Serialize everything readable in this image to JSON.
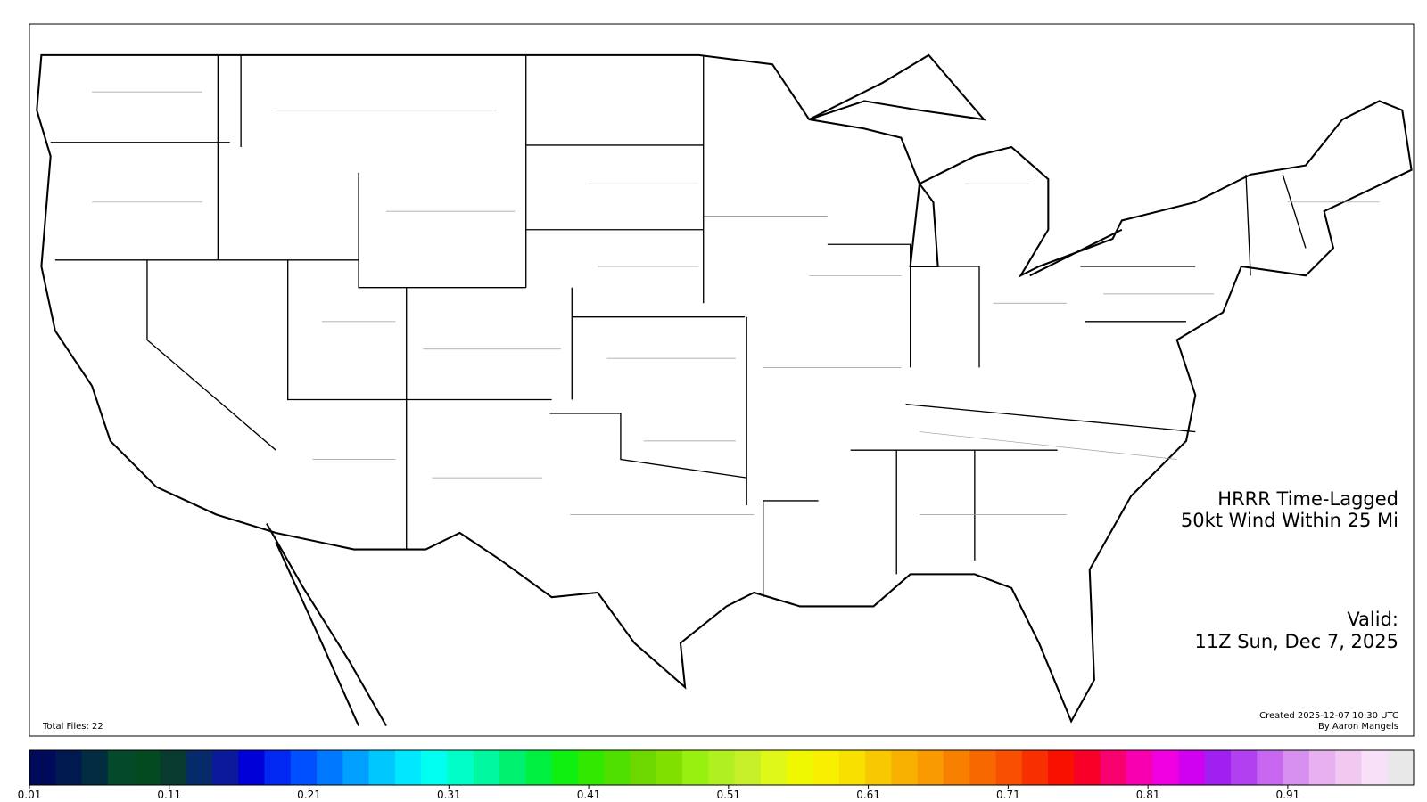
{
  "map": {
    "title_lines": [
      "HRRR Time-Lagged",
      "50kt Wind Within 25 Mi"
    ],
    "valid_lines": [
      "Valid:",
      "11Z Sun, Dec 7, 2025"
    ],
    "footer_left": "Total Files: 22",
    "credit_lines": [
      "Created 2025-12-07 10:30 UTC",
      "By Aaron Mangels"
    ]
  },
  "colorbar": {
    "range": [
      0.01,
      1.0
    ],
    "ticks": [
      0.01,
      0.11,
      0.21,
      0.31,
      0.41,
      0.51,
      0.61,
      0.71,
      0.81,
      0.91
    ],
    "colors": [
      "#000a5a",
      "#001a50",
      "#022d40",
      "#034a2a",
      "#024a20",
      "#083a30",
      "#062a6a",
      "#0a1a9a",
      "#0000d8",
      "#0028f0",
      "#0050ff",
      "#0078ff",
      "#00a0ff",
      "#00c8ff",
      "#00e8ff",
      "#00fff0",
      "#00ffc8",
      "#00f8a0",
      "#00f070",
      "#00f040",
      "#10f010",
      "#30e800",
      "#50e000",
      "#6cd800",
      "#80e000",
      "#98f010",
      "#b0f020",
      "#c8f028",
      "#e0f818",
      "#f0f800",
      "#f8f000",
      "#f8e000",
      "#f8c800",
      "#f8b000",
      "#f89a00",
      "#f88000",
      "#f86800",
      "#f85000",
      "#f83000",
      "#f81000",
      "#f80028",
      "#f80070",
      "#f800b0",
      "#f000e0",
      "#d000f0",
      "#a020f0",
      "#b040f0",
      "#c868f0",
      "#d890f0",
      "#e8b0f0",
      "#f0c8f0",
      "#f8e0f8",
      "#e8e8e8"
    ]
  }
}
